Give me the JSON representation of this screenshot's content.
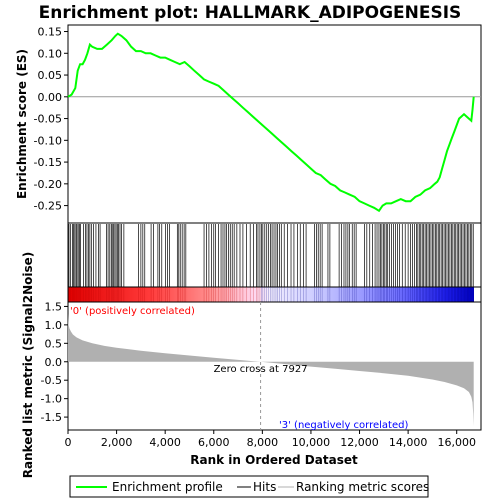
{
  "chart_data": {
    "type": "line",
    "title": "Enrichment plot: HALLMARK_ADIPOGENESIS",
    "colors": {
      "es_line": "#00ff00",
      "hits": "#000000",
      "metric_fill": "#b0b0b0",
      "pos_label": "#ff0000",
      "neg_label": "#0000ff",
      "bar_red": "#ff0000",
      "bar_blue": "#0000dd"
    },
    "es_panel": {
      "ylabel": "Enrichment score (ES)",
      "ylim": [
        -0.29,
        0.165
      ],
      "yticks": [
        0.15,
        0.1,
        0.05,
        0.0,
        -0.05,
        -0.1,
        -0.15,
        -0.2,
        -0.25
      ],
      "ytick_labels": [
        "0.15",
        "0.10",
        "0.05",
        "0.00",
        "-0.05",
        "-0.10",
        "-0.15",
        "-0.20",
        "-0.25"
      ],
      "series": [
        {
          "name": "Enrichment profile",
          "x": [
            0,
            150,
            300,
            400,
            500,
            600,
            700,
            800,
            900,
            1000,
            1200,
            1400,
            1600,
            1800,
            1950,
            2050,
            2200,
            2400,
            2600,
            2800,
            3000,
            3200,
            3400,
            3600,
            3800,
            4000,
            4200,
            4400,
            4600,
            4800,
            5000,
            5200,
            5400,
            5600,
            5800,
            6000,
            6200,
            6400,
            6600,
            6800,
            7000,
            7200,
            7400,
            7600,
            7800,
            8000,
            8200,
            8400,
            8600,
            8800,
            9000,
            9200,
            9400,
            9600,
            9800,
            10000,
            10200,
            10400,
            10600,
            10800,
            11000,
            11200,
            11400,
            11600,
            11800,
            12000,
            12200,
            12400,
            12600,
            12800,
            12950,
            13100,
            13300,
            13500,
            13700,
            13900,
            14100,
            14300,
            14500,
            14700,
            14900,
            15000,
            15100,
            15200,
            15300,
            15400,
            15500,
            15600,
            15700,
            15800,
            15900,
            16000,
            16100,
            16200,
            16300,
            16400,
            16500,
            16600,
            16650,
            16700
          ],
          "y": [
            0.0,
            0.005,
            0.02,
            0.06,
            0.075,
            0.075,
            0.085,
            0.1,
            0.12,
            0.115,
            0.11,
            0.11,
            0.12,
            0.13,
            0.14,
            0.145,
            0.14,
            0.13,
            0.115,
            0.105,
            0.105,
            0.1,
            0.1,
            0.095,
            0.09,
            0.09,
            0.085,
            0.08,
            0.075,
            0.08,
            0.07,
            0.06,
            0.05,
            0.04,
            0.035,
            0.03,
            0.025,
            0.015,
            0.005,
            -0.005,
            -0.015,
            -0.025,
            -0.035,
            -0.045,
            -0.055,
            -0.065,
            -0.075,
            -0.085,
            -0.095,
            -0.105,
            -0.115,
            -0.125,
            -0.135,
            -0.145,
            -0.155,
            -0.165,
            -0.175,
            -0.18,
            -0.19,
            -0.2,
            -0.205,
            -0.215,
            -0.22,
            -0.225,
            -0.23,
            -0.24,
            -0.245,
            -0.25,
            -0.255,
            -0.262,
            -0.25,
            -0.245,
            -0.245,
            -0.24,
            -0.235,
            -0.24,
            -0.24,
            -0.23,
            -0.225,
            -0.215,
            -0.21,
            -0.205,
            -0.2,
            -0.195,
            -0.185,
            -0.165,
            -0.145,
            -0.125,
            -0.11,
            -0.095,
            -0.08,
            -0.065,
            -0.05,
            -0.045,
            -0.04,
            -0.045,
            -0.05,
            -0.055,
            -0.03,
            0.0
          ]
        }
      ]
    },
    "hits": [
      40,
      110,
      180,
      230,
      280,
      330,
      370,
      420,
      470,
      520,
      640,
      720,
      780,
      840,
      900,
      960,
      1050,
      1150,
      1260,
      1320,
      1580,
      1650,
      1720,
      1780,
      1820,
      1880,
      1930,
      1980,
      2030,
      2080,
      2140,
      2200,
      2300,
      2900,
      3000,
      3080,
      3160,
      3420,
      3520,
      3700,
      3760,
      3860,
      4020,
      4100,
      4180,
      4500,
      4560,
      4620,
      4700,
      4780,
      4850,
      5600,
      5700,
      5800,
      5900,
      6000,
      6070,
      6200,
      6300,
      6380,
      6460,
      6530,
      6600,
      6680,
      6760,
      6840,
      6950,
      7080,
      7200,
      7350,
      7500,
      7640,
      7760,
      7820,
      7900,
      7960,
      8020,
      8100,
      8180,
      8260,
      8340,
      8400,
      8480,
      8560,
      8620,
      8700,
      8780,
      8900,
      9040,
      9180,
      9300,
      9440,
      9560,
      9700,
      9800,
      10150,
      10230,
      10300,
      10380,
      10460,
      10700,
      10780,
      11160,
      11260,
      11360,
      11440,
      11520,
      11580,
      11700,
      11780,
      11860,
      12200,
      12300,
      12420,
      12540,
      12640,
      12720,
      12800,
      12860,
      12920,
      12980,
      13040,
      13100,
      13160,
      13240,
      13320,
      13400,
      13480,
      13560,
      13640,
      13760,
      13880,
      14000,
      14100,
      14180,
      14260,
      14340,
      14400,
      14460,
      14520,
      14580,
      14640,
      14700,
      14760,
      14820,
      14880,
      14940,
      15000,
      15060,
      15120,
      15180,
      15240,
      15300,
      15360,
      15420,
      15480,
      15540,
      15600,
      15660,
      15720,
      15780,
      15840,
      15900,
      15960,
      16020,
      16080,
      16140,
      16200,
      16260,
      16320,
      16380,
      16440,
      16500,
      16560,
      16620,
      16680
    ],
    "color_bar": {
      "zero_cross": 7927
    },
    "metric_panel": {
      "ylabel": "Ranked list metric (Signal2Noise)",
      "ylim": [
        -1.85,
        1.62
      ],
      "yticks": [
        1.5,
        1.0,
        0.5,
        0.0,
        -0.5,
        -1.0,
        -1.5
      ],
      "ytick_labels": [
        "1.5",
        "1.0",
        "0.5",
        "0.0",
        "-0.5",
        "-1.0",
        "-1.5"
      ],
      "x": [
        0,
        20,
        60,
        120,
        200,
        350,
        600,
        1000,
        1500,
        2000,
        3000,
        4000,
        5000,
        6000,
        7000,
        7927,
        9000,
        10000,
        11000,
        12000,
        13000,
        14000,
        15000,
        15500,
        16000,
        16300,
        16500,
        16600,
        16650,
        16680,
        16700
      ],
      "y": [
        1.3,
        1.0,
        0.9,
        0.82,
        0.74,
        0.66,
        0.58,
        0.5,
        0.43,
        0.38,
        0.3,
        0.23,
        0.17,
        0.11,
        0.05,
        0.0,
        -0.07,
        -0.13,
        -0.19,
        -0.25,
        -0.31,
        -0.38,
        -0.48,
        -0.55,
        -0.64,
        -0.72,
        -0.82,
        -0.95,
        -1.1,
        -1.4,
        -1.75
      ],
      "zero_cross_label": "Zero cross at 7927",
      "pos_label": "'0' (positively correlated)",
      "neg_label": "'3' (negatively correlated)"
    },
    "x_axis": {
      "label": "Rank in Ordered Dataset",
      "xlim": [
        0,
        17000
      ],
      "ticks": [
        0,
        2000,
        4000,
        6000,
        8000,
        10000,
        12000,
        14000,
        16000
      ],
      "tick_labels": [
        "0",
        "2,000",
        "4,000",
        "6,000",
        "8,000",
        "10,000",
        "12,000",
        "14,000",
        "16,000"
      ]
    },
    "legend": {
      "entries": [
        "Enrichment profile",
        "Hits",
        "Ranking metric scores"
      ]
    }
  }
}
